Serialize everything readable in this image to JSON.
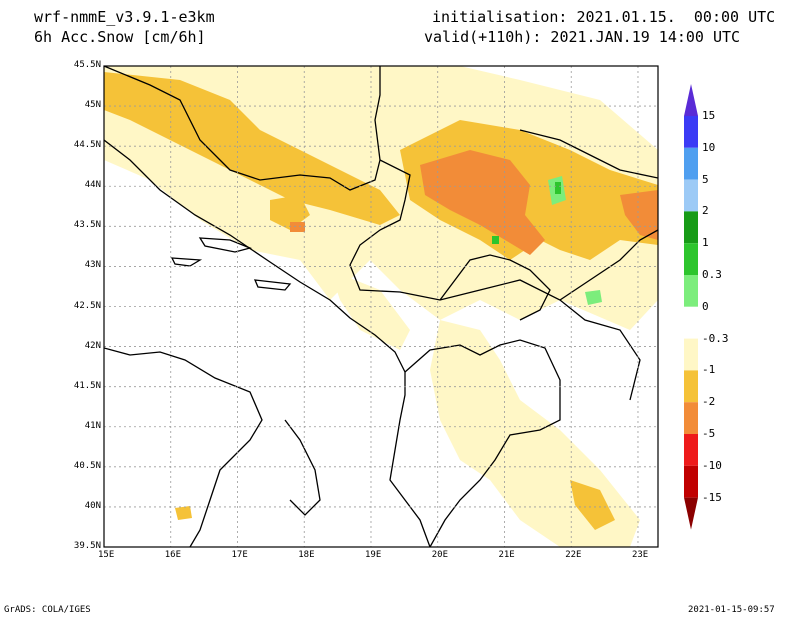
{
  "header": {
    "model": "wrf-nmmE_v3.9.1-e3km",
    "field": "6h Acc.Snow [cm/6h]",
    "init": "initialisation: 2021.01.15.  00:00 UTC",
    "valid": "valid(+110h): 2021.JAN.19 14:00 UTC"
  },
  "footer": {
    "credit": "GrADS: COLA/IGES",
    "timestamp": "2021-01-15-09:57"
  },
  "map": {
    "lat_labels": [
      "45.5N",
      "45N",
      "44.5N",
      "44N",
      "43.5N",
      "43N",
      "42.5N",
      "42N",
      "41.5N",
      "41N",
      "40.5N",
      "40N",
      "39.5N"
    ],
    "lon_labels": [
      "15E",
      "16E",
      "17E",
      "18E",
      "19E",
      "20E",
      "21E",
      "22E",
      "23E"
    ],
    "lon_range": [
      15,
      23.3
    ],
    "lat_range": [
      39.5,
      45.5
    ]
  },
  "colorbar": {
    "labels": [
      "15",
      "10",
      "5",
      "2",
      "1",
      "0.3",
      "0",
      "-0.3",
      "-1",
      "-2",
      "-5",
      "-10",
      "-15"
    ],
    "colors": [
      "#5a2bd6",
      "#3b3bf5",
      "#4f9ff0",
      "#9ccaf6",
      "#179b17",
      "#2dc52d",
      "#7ced7c",
      "#ffffff",
      "#fff7c6",
      "#f5c238",
      "#f28c38",
      "#ee1a1a",
      "#c00000",
      "#8b0000"
    ]
  }
}
